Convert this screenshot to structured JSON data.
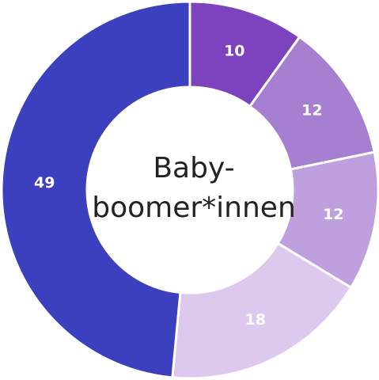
{
  "chart_data": {
    "type": "donut",
    "center_label": [
      "Baby-",
      "boomer*innen"
    ],
    "categories": [
      null,
      null,
      null,
      null,
      null
    ],
    "values": [
      10,
      12,
      12,
      18,
      49
    ],
    "colors": [
      "#7d42bd",
      "#a77fd0",
      "#bfa0de",
      "#dcc9ed",
      "#3c3fbe"
    ]
  }
}
